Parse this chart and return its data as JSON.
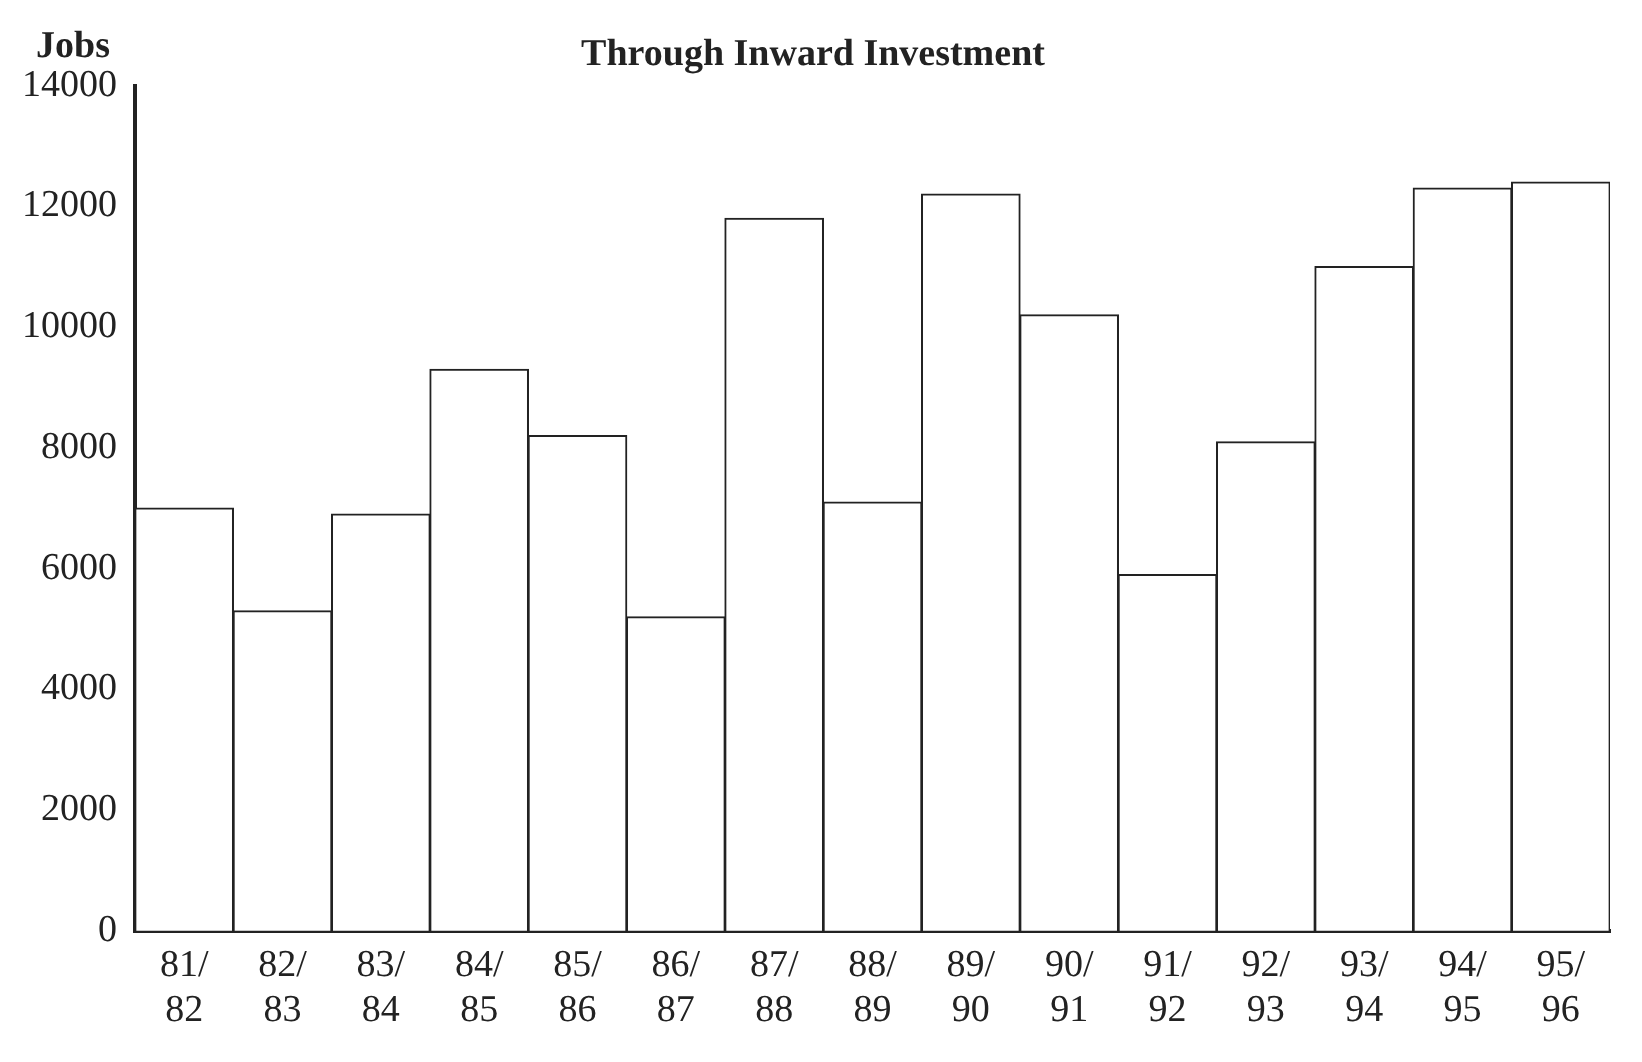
{
  "chart_data": {
    "type": "bar",
    "title": "Through Inward Investment",
    "ylabel": "Jobs",
    "categories": [
      "81/ 82",
      "82/ 83",
      "83/ 84",
      "84/ 85",
      "85/ 86",
      "86/ 87",
      "87/ 88",
      "88/ 89",
      "89/ 90",
      "90/ 91",
      "91/ 92",
      "92/ 93",
      "93/ 94",
      "94/ 95",
      "95/ 96"
    ],
    "values": [
      7000,
      5300,
      6900,
      9300,
      8200,
      5200,
      11800,
      7100,
      12200,
      10200,
      5900,
      8100,
      11000,
      12300,
      12400
    ],
    "color": "#ffffff",
    "ylim": [
      0,
      14000
    ],
    "yticks": [
      0,
      2000,
      4000,
      6000,
      8000,
      10000,
      12000,
      14000
    ],
    "grid": false,
    "legend": false
  }
}
